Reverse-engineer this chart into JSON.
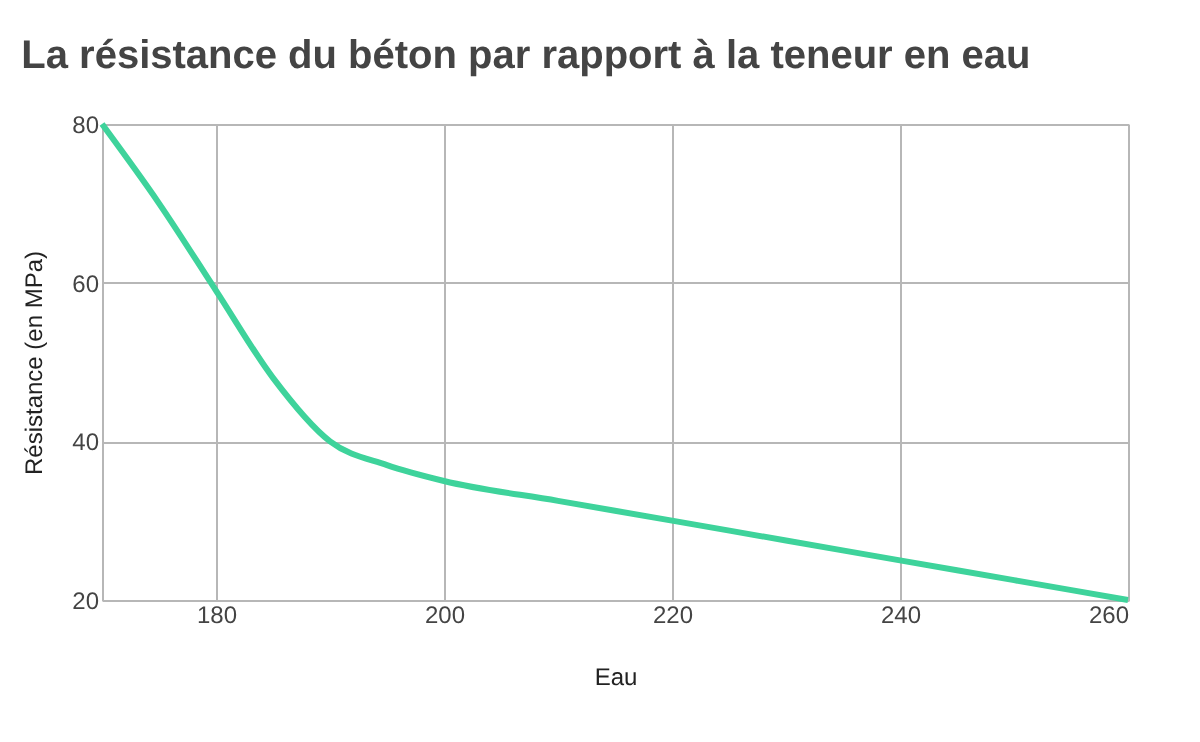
{
  "chart_data": {
    "type": "line",
    "title": "La résistance du béton par rapport à la teneur en eau",
    "xlabel": "Eau",
    "ylabel": "Résistance (en MPa)",
    "x": [
      170,
      175,
      180,
      185,
      190,
      195,
      200,
      210,
      220,
      230,
      240,
      250,
      260
    ],
    "series": [
      {
        "color": "#3ed39b",
        "values": [
          80,
          70,
          59,
          48,
          40,
          37,
          35,
          32.5,
          30,
          27.5,
          25,
          22.5,
          20
        ]
      }
    ],
    "xlim": [
      170,
      260
    ],
    "xticks": [
      180,
      200,
      220,
      240,
      260
    ],
    "ylim": [
      20,
      80
    ],
    "yticks": [
      20,
      40,
      60,
      80
    ],
    "grid": true,
    "marker": "none",
    "line_style": "solid"
  }
}
